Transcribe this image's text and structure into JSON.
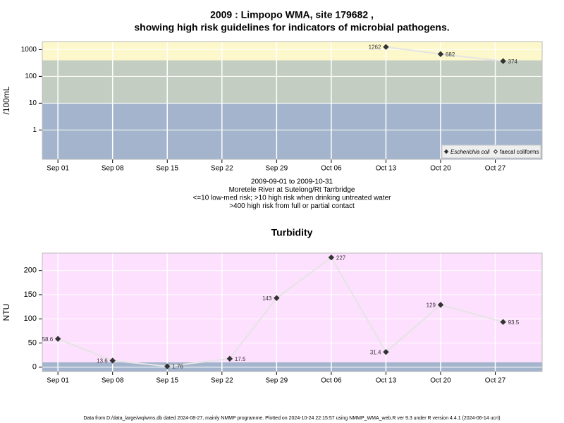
{
  "chart_data": [
    {
      "type": "line",
      "title": [
        "2009 : Limpopo WMA, site 179682 ,",
        "showing high risk guidelines for indicators of microbial pathogens."
      ],
      "y_label": "/100mL",
      "notes": [
        "2009-09-01 to 2009-10-31",
        "Moretele River at Sutelong/Rt Tarrbridge",
        "<=10 low-med risk; >10 high risk when drinking untreated water",
        ">400 high risk from full or partial contact"
      ],
      "x": [
        "2009-09-01",
        "2009-09-08",
        "2009-09-15",
        "2009-09-23",
        "2009-09-29",
        "2009-10-06",
        "2009-10-13",
        "2009-10-20",
        "2009-10-28"
      ],
      "series": [
        {
          "name": "Escherichia coli",
          "color": "#333333",
          "line_color": "#e4e4e4",
          "marker": "filled",
          "values": [
            null,
            null,
            null,
            null,
            null,
            null,
            1262,
            682,
            374
          ]
        },
        {
          "name": "faecal coliforms",
          "color": "#333333",
          "line_color": "#e4e4e4",
          "marker": "open",
          "values": [
            null,
            null,
            null,
            null,
            null,
            null,
            null,
            null,
            null
          ]
        }
      ],
      "log_y": true,
      "ylim": [
        0.08,
        2000
      ],
      "yticks": [
        1,
        10,
        100,
        1000
      ],
      "xlim": [
        "2009-08-30",
        "2009-11-02"
      ],
      "xticks": [
        {
          "value": "2009-09-01",
          "label": "Sep 01"
        },
        {
          "value": "2009-09-08",
          "label": "Sep 08"
        },
        {
          "value": "2009-09-15",
          "label": "Sep 15"
        },
        {
          "value": "2009-09-22",
          "label": "Sep 22"
        },
        {
          "value": "2009-09-29",
          "label": "Sep 29"
        },
        {
          "value": "2009-10-06",
          "label": "Oct 06"
        },
        {
          "value": "2009-10-13",
          "label": "Oct 13"
        },
        {
          "value": "2009-10-20",
          "label": "Oct 20"
        },
        {
          "value": "2009-10-27",
          "label": "Oct 27"
        }
      ],
      "thresholds": [
        10,
        400
      ],
      "band_colors": [
        "#a3b4cc",
        "#c4cdc2",
        "#fdf8cc"
      ],
      "grid": true,
      "legend": "bottom-right"
    },
    {
      "type": "line",
      "title": [
        "Turbidity"
      ],
      "y_label": "NTU",
      "x": [
        "2009-09-01",
        "2009-09-08",
        "2009-09-15",
        "2009-09-23",
        "2009-09-29",
        "2009-10-06",
        "2009-10-13",
        "2009-10-20",
        "2009-10-28"
      ],
      "series": [
        {
          "color": "#333333",
          "line_color": "#e4e4e4",
          "marker": "filled",
          "values": [
            58.6,
            13.6,
            1.76,
            17.5,
            143,
            227,
            31.4,
            129,
            93.5
          ]
        }
      ],
      "log_y": false,
      "ylim": [
        -9,
        236
      ],
      "yticks": [
        0,
        50,
        100,
        150,
        200
      ],
      "xlim": [
        "2009-08-30",
        "2009-11-02"
      ],
      "xticks": [
        {
          "value": "2009-09-01",
          "label": "Sep 01"
        },
        {
          "value": "2009-09-08",
          "label": "Sep 08"
        },
        {
          "value": "2009-09-15",
          "label": "Sep 15"
        },
        {
          "value": "2009-09-22",
          "label": "Sep 22"
        },
        {
          "value": "2009-09-29",
          "label": "Sep 29"
        },
        {
          "value": "2009-10-06",
          "label": "Oct 06"
        },
        {
          "value": "2009-10-13",
          "label": "Oct 13"
        },
        {
          "value": "2009-10-20",
          "label": "Oct 20"
        },
        {
          "value": "2009-10-27",
          "label": "Oct 27"
        }
      ],
      "thresholds": [
        10
      ],
      "band_colors": [
        "#a3b4cc",
        "#fde0fd"
      ],
      "grid": true
    }
  ],
  "footer": "Data from D:/data_large/wq/wms.db dated 2024-08-27, mainly NMMP programme. Plotted on 2024-10-24 22:15:57 using NMMP_WMA_web.R ver 9.3 under R version 4.4.1 (2024-06-14 ucrt)"
}
